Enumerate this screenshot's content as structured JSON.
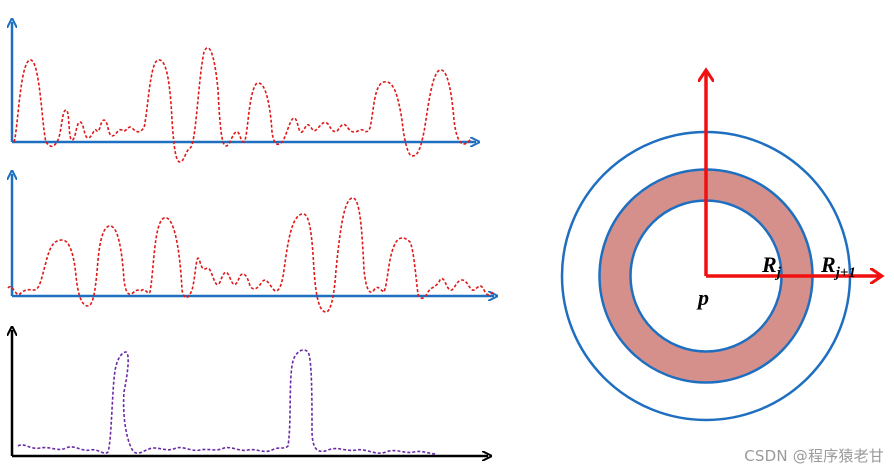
{
  "colors": {
    "blue_axis": "#1f6fc1",
    "black_axis": "#000000",
    "red_signal": "#e01818",
    "purple_signal": "#6a2aa8",
    "ring_fill": "#d6908c",
    "ring_stroke": "#1f6fc1",
    "red_arrow": "#f01010"
  },
  "diagram": {
    "center_label": "p",
    "inner_radius_label": "R",
    "inner_radius_sub": "j",
    "outer_radius_label": "R",
    "outer_radius_sub": "j+1"
  },
  "watermark": "CSDN @程序猿老甘"
}
